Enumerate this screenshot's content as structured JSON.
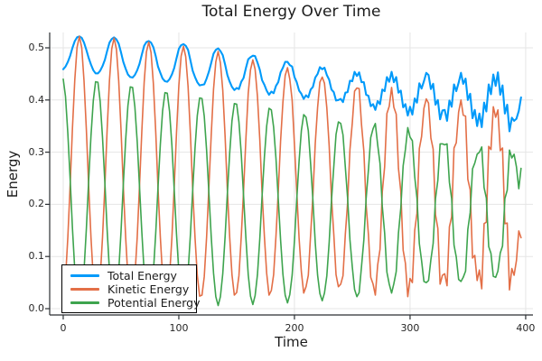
{
  "figure": {
    "title": "Total Energy Over Time"
  },
  "axes": {
    "x": {
      "label": "Time",
      "ticks": [
        0,
        100,
        200,
        300,
        400
      ],
      "tick_labels": [
        "0",
        "100",
        "200",
        "300",
        "400"
      ]
    },
    "y": {
      "label": "Energy",
      "ticks": [
        0.0,
        0.1,
        0.2,
        0.3,
        0.4,
        0.5
      ],
      "tick_labels": [
        "0.0",
        "0.1",
        "0.2",
        "0.3",
        "0.4",
        "0.5"
      ]
    }
  },
  "legend": {
    "items": [
      {
        "label": "Total Energy",
        "color": "#009AFA"
      },
      {
        "label": "Kinetic Energy",
        "color": "#E36F47"
      },
      {
        "label": "Potential Energy",
        "color": "#3EA44E"
      }
    ]
  },
  "colors": {
    "total": "#009AFA",
    "kinetic": "#E36F47",
    "potential": "#3EA44E",
    "grid": "#e5e5e5",
    "spine": "#2b2f33",
    "text": "#1c1c1c"
  },
  "chart_data": {
    "type": "line",
    "title": "Total Energy Over Time",
    "xlabel": "Time",
    "ylabel": "Energy",
    "xlim": [
      -11.7,
      406.3
    ],
    "ylim": [
      -0.0121,
      0.5294
    ],
    "xticks": [
      0,
      100,
      200,
      300,
      400
    ],
    "yticks": [
      0.0,
      0.1,
      0.2,
      0.3,
      0.4,
      0.5
    ],
    "grid": true,
    "legend_position": "bottom-left",
    "x": [
      0,
      2,
      4,
      6,
      8,
      10,
      12,
      14,
      16,
      18,
      20,
      22,
      24,
      26,
      28,
      30,
      32,
      34,
      36,
      38,
      40,
      42,
      44,
      46,
      48,
      50,
      52,
      54,
      56,
      58,
      60,
      62,
      64,
      66,
      68,
      70,
      72,
      74,
      76,
      78,
      80,
      82,
      84,
      86,
      88,
      90,
      92,
      94,
      96,
      98,
      100,
      102,
      104,
      106,
      108,
      110,
      112,
      114,
      116,
      118,
      120,
      122,
      124,
      126,
      128,
      130,
      132,
      134,
      136,
      138,
      140,
      142,
      144,
      146,
      148,
      150,
      152,
      154,
      156,
      158,
      160,
      162,
      164,
      166,
      168,
      170,
      172,
      174,
      176,
      178,
      180,
      182,
      184,
      186,
      188,
      190,
      192,
      194,
      196,
      198,
      200,
      202,
      204,
      206,
      208,
      210,
      212,
      214,
      216,
      218,
      220,
      222,
      224,
      226,
      228,
      230,
      232,
      234,
      236,
      238,
      240,
      242,
      244,
      246,
      248,
      250,
      252,
      254,
      256,
      258,
      260,
      262,
      264,
      266,
      268,
      270,
      272,
      274,
      276,
      278,
      280,
      282,
      284,
      286,
      288,
      290,
      292,
      294,
      296,
      298,
      300,
      302,
      304,
      306,
      308,
      310,
      312,
      314,
      316,
      318,
      320,
      322,
      324,
      326,
      328,
      330,
      332,
      334,
      336,
      338,
      340,
      342,
      344,
      346,
      348,
      350,
      352,
      354,
      356,
      358,
      360,
      362,
      364,
      366,
      368,
      370,
      372,
      374,
      376,
      378,
      380,
      382,
      384,
      386,
      388,
      390,
      392,
      394,
      396
    ],
    "series": [
      {
        "name": "Total Energy",
        "color": "#009AFA",
        "line_width": 2.1,
        "values": [
          0.459,
          0.464,
          0.473,
          0.485,
          0.5,
          0.513,
          0.52,
          0.522,
          0.519,
          0.51,
          0.496,
          0.481,
          0.468,
          0.457,
          0.451,
          0.451,
          0.456,
          0.465,
          0.477,
          0.494,
          0.51,
          0.517,
          0.52,
          0.516,
          0.508,
          0.491,
          0.473,
          0.46,
          0.449,
          0.444,
          0.443,
          0.448,
          0.457,
          0.469,
          0.487,
          0.504,
          0.511,
          0.513,
          0.51,
          0.501,
          0.484,
          0.464,
          0.452,
          0.441,
          0.436,
          0.435,
          0.44,
          0.449,
          0.461,
          0.48,
          0.498,
          0.505,
          0.507,
          0.504,
          0.496,
          0.476,
          0.456,
          0.444,
          0.434,
          0.428,
          0.429,
          0.43,
          0.441,
          0.454,
          0.471,
          0.489,
          0.496,
          0.499,
          0.494,
          0.486,
          0.468,
          0.448,
          0.435,
          0.425,
          0.419,
          0.423,
          0.421,
          0.435,
          0.442,
          0.461,
          0.478,
          0.482,
          0.485,
          0.484,
          0.472,
          0.458,
          0.438,
          0.429,
          0.418,
          0.41,
          0.416,
          0.413,
          0.427,
          0.434,
          0.453,
          0.462,
          0.473,
          0.473,
          0.467,
          0.464,
          0.444,
          0.434,
          0.418,
          0.412,
          0.402,
          0.409,
          0.405,
          0.42,
          0.425,
          0.443,
          0.45,
          0.463,
          0.459,
          0.462,
          0.448,
          0.439,
          0.42,
          0.415,
          0.399,
          0.4,
          0.402,
          0.396,
          0.414,
          0.415,
          0.437,
          0.436,
          0.454,
          0.446,
          0.453,
          0.434,
          0.434,
          0.41,
          0.408,
          0.388,
          0.392,
          0.381,
          0.398,
          0.392,
          0.42,
          0.417,
          0.444,
          0.435,
          0.454,
          0.434,
          0.444,
          0.414,
          0.418,
          0.386,
          0.392,
          0.37,
          0.387,
          0.372,
          0.403,
          0.395,
          0.432,
          0.422,
          0.436,
          0.452,
          0.448,
          0.421,
          0.431,
          0.391,
          0.4,
          0.363,
          0.38,
          0.381,
          0.36,
          0.399,
          0.387,
          0.43,
          0.417,
          0.433,
          0.452,
          0.431,
          0.441,
          0.4,
          0.412,
          0.365,
          0.381,
          0.35,
          0.374,
          0.348,
          0.395,
          0.378,
          0.43,
          0.411,
          0.449,
          0.427,
          0.453,
          0.41,
          0.428,
          0.374,
          0.391,
          0.34,
          0.366,
          0.36,
          0.364,
          0.379,
          0.405
        ]
      },
      {
        "name": "Kinetic Energy",
        "color": "#E36F47",
        "line_width": 1.6,
        "values": [
          0.019,
          0.057,
          0.137,
          0.238,
          0.346,
          0.439,
          0.501,
          0.522,
          0.5,
          0.437,
          0.343,
          0.237,
          0.137,
          0.058,
          0.016,
          0.017,
          0.059,
          0.137,
          0.236,
          0.343,
          0.438,
          0.498,
          0.519,
          0.497,
          0.437,
          0.342,
          0.235,
          0.137,
          0.06,
          0.019,
          0.019,
          0.061,
          0.137,
          0.234,
          0.34,
          0.434,
          0.492,
          0.511,
          0.491,
          0.431,
          0.339,
          0.232,
          0.137,
          0.062,
          0.022,
          0.022,
          0.062,
          0.136,
          0.231,
          0.337,
          0.428,
          0.484,
          0.503,
          0.483,
          0.426,
          0.334,
          0.229,
          0.136,
          0.064,
          0.024,
          0.026,
          0.061,
          0.137,
          0.231,
          0.332,
          0.421,
          0.473,
          0.493,
          0.471,
          0.419,
          0.33,
          0.227,
          0.136,
          0.065,
          0.026,
          0.031,
          0.063,
          0.139,
          0.225,
          0.325,
          0.413,
          0.458,
          0.477,
          0.459,
          0.407,
          0.324,
          0.223,
          0.138,
          0.068,
          0.026,
          0.035,
          0.065,
          0.139,
          0.223,
          0.321,
          0.396,
          0.447,
          0.462,
          0.44,
          0.4,
          0.313,
          0.225,
          0.135,
          0.071,
          0.03,
          0.042,
          0.064,
          0.143,
          0.217,
          0.317,
          0.386,
          0.434,
          0.444,
          0.432,
          0.385,
          0.312,
          0.214,
          0.143,
          0.065,
          0.042,
          0.047,
          0.063,
          0.143,
          0.203,
          0.305,
          0.356,
          0.417,
          0.423,
          0.422,
          0.353,
          0.302,
          0.199,
          0.141,
          0.06,
          0.047,
          0.026,
          0.084,
          0.114,
          0.224,
          0.272,
          0.374,
          0.388,
          0.424,
          0.386,
          0.373,
          0.269,
          0.225,
          0.112,
          0.087,
          0.023,
          0.058,
          0.05,
          0.15,
          0.183,
          0.307,
          0.33,
          0.384,
          0.402,
          0.394,
          0.327,
          0.306,
          0.18,
          0.154,
          0.047,
          0.064,
          0.067,
          0.044,
          0.157,
          0.176,
          0.308,
          0.318,
          0.377,
          0.4,
          0.371,
          0.369,
          0.248,
          0.228,
          0.097,
          0.102,
          0.054,
          0.074,
          0.038,
          0.163,
          0.166,
          0.311,
          0.305,
          0.387,
          0.367,
          0.381,
          0.303,
          0.308,
          0.163,
          0.164,
          0.036,
          0.077,
          0.064,
          0.092,
          0.149,
          0.136
        ]
      },
      {
        "name": "Potential Energy",
        "color": "#3EA44E",
        "line_width": 1.6,
        "values": [
          0.44,
          0.407,
          0.336,
          0.247,
          0.154,
          0.074,
          0.019,
          0.0,
          0.019,
          0.073,
          0.153,
          0.244,
          0.331,
          0.399,
          0.435,
          0.434,
          0.397,
          0.328,
          0.241,
          0.151,
          0.072,
          0.019,
          0.001,
          0.019,
          0.071,
          0.149,
          0.238,
          0.323,
          0.389,
          0.425,
          0.424,
          0.387,
          0.32,
          0.235,
          0.147,
          0.07,
          0.019,
          0.002,
          0.019,
          0.07,
          0.145,
          0.232,
          0.315,
          0.379,
          0.414,
          0.413,
          0.378,
          0.313,
          0.23,
          0.143,
          0.07,
          0.021,
          0.004,
          0.021,
          0.07,
          0.142,
          0.227,
          0.308,
          0.37,
          0.404,
          0.403,
          0.369,
          0.304,
          0.223,
          0.139,
          0.068,
          0.023,
          0.006,
          0.023,
          0.067,
          0.138,
          0.221,
          0.299,
          0.36,
          0.393,
          0.392,
          0.358,
          0.296,
          0.217,
          0.136,
          0.065,
          0.024,
          0.008,
          0.025,
          0.065,
          0.134,
          0.215,
          0.291,
          0.35,
          0.384,
          0.381,
          0.348,
          0.288,
          0.211,
          0.132,
          0.066,
          0.026,
          0.011,
          0.027,
          0.064,
          0.131,
          0.209,
          0.283,
          0.341,
          0.372,
          0.367,
          0.341,
          0.277,
          0.208,
          0.126,
          0.064,
          0.029,
          0.015,
          0.03,
          0.063,
          0.127,
          0.206,
          0.272,
          0.334,
          0.358,
          0.355,
          0.333,
          0.271,
          0.212,
          0.132,
          0.08,
          0.037,
          0.023,
          0.031,
          0.081,
          0.132,
          0.211,
          0.267,
          0.328,
          0.345,
          0.355,
          0.314,
          0.278,
          0.196,
          0.145,
          0.07,
          0.047,
          0.03,
          0.048,
          0.071,
          0.145,
          0.193,
          0.274,
          0.305,
          0.347,
          0.329,
          0.322,
          0.253,
          0.212,
          0.125,
          0.092,
          0.052,
          0.05,
          0.054,
          0.094,
          0.125,
          0.211,
          0.246,
          0.316,
          0.316,
          0.314,
          0.316,
          0.242,
          0.211,
          0.122,
          0.099,
          0.056,
          0.052,
          0.06,
          0.072,
          0.152,
          0.184,
          0.268,
          0.279,
          0.296,
          0.3,
          0.31,
          0.232,
          0.212,
          0.119,
          0.106,
          0.062,
          0.06,
          0.072,
          0.107,
          0.12,
          0.211,
          0.227,
          0.304,
          0.289,
          0.296,
          0.272,
          0.23,
          0.269
        ]
      }
    ]
  }
}
